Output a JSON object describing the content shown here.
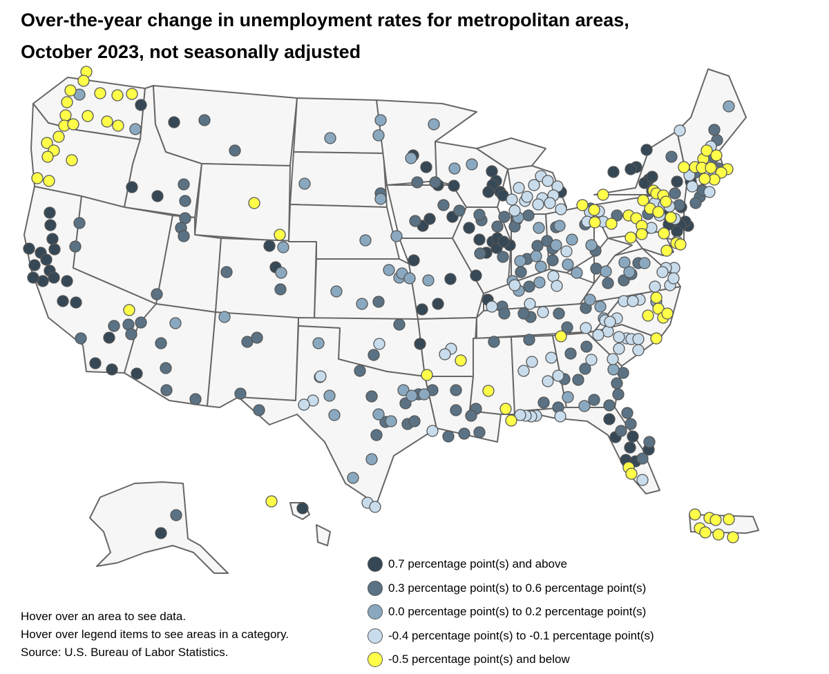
{
  "title": {
    "line1": "Over-the-year change in unemployment rates for metropolitan areas,",
    "line2": "October 2023, not seasonally adjusted"
  },
  "legend": [
    {
      "label": "0.7 percentage point(s) and above",
      "color": "#364856"
    },
    {
      "label": "0.3 percentage point(s) to 0.6 percentage point(s)",
      "color": "#5a7284"
    },
    {
      "label": "0.0 percentage point(s) to 0.2 percentage point(s)",
      "color": "#8aa9c0"
    },
    {
      "label": "-0.4 percentage point(s) to -0.1 percentage point(s)",
      "color": "#c8dcec"
    },
    {
      "label": "-0.5 percentage point(s) and below",
      "color": "#ffff4a"
    }
  ],
  "notes": {
    "hover_area": "Hover over an area to see data.",
    "hover_legend": "Hover over legend items to see areas in a category.",
    "source": "Source: U.S. Bureau of Labor Statistics."
  },
  "colors": {
    "state_fill": "#f6f6f6",
    "state_border": "#666666",
    "marker_border": "#555555"
  }
}
